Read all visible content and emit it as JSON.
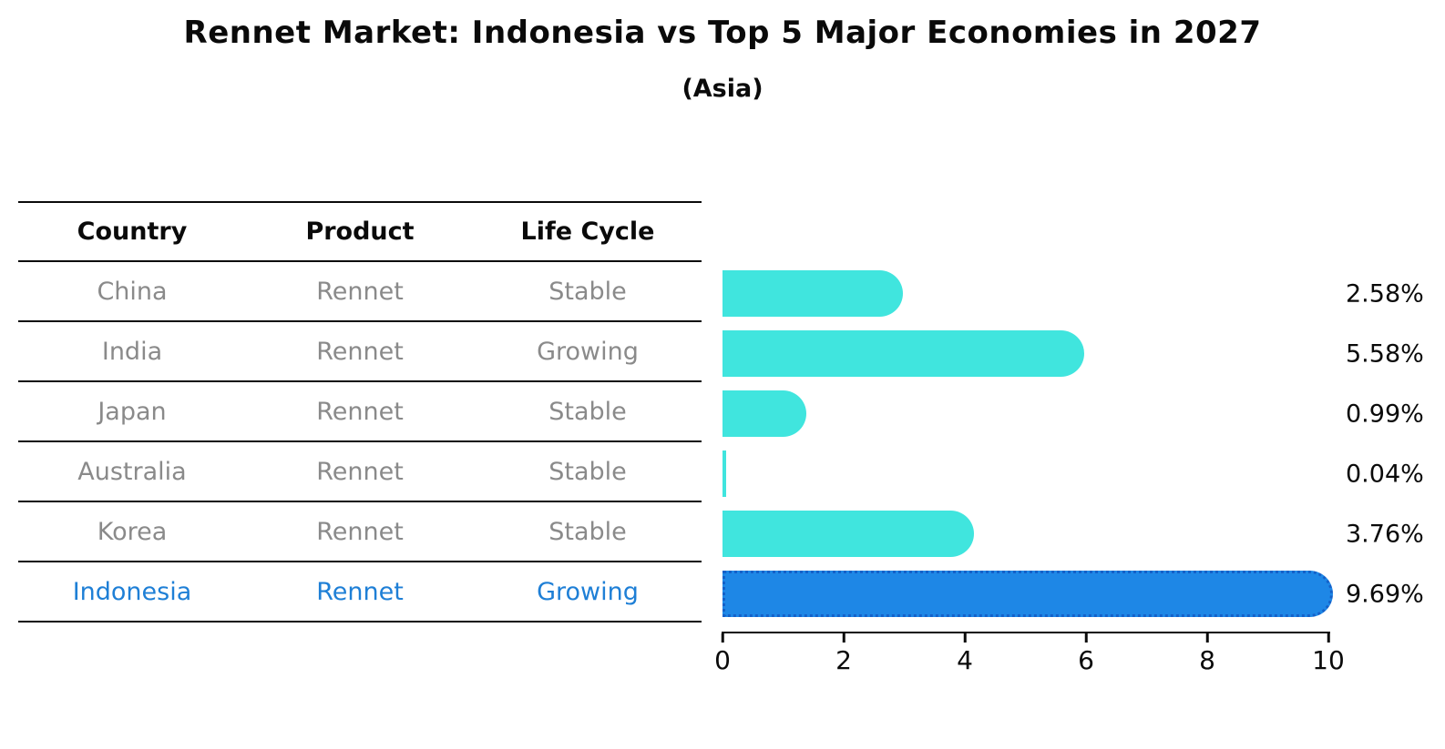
{
  "title": "Rennet Market: Indonesia vs Top 5 Major Economies in 2027",
  "subtitle": "(Asia)",
  "table": {
    "headers": [
      "Country",
      "Product",
      "Life Cycle"
    ],
    "rows": [
      {
        "country": "China",
        "product": "Rennet",
        "life_cycle": "Stable",
        "highlight": false
      },
      {
        "country": "India",
        "product": "Rennet",
        "life_cycle": "Growing",
        "highlight": false
      },
      {
        "country": "Japan",
        "product": "Rennet",
        "life_cycle": "Stable",
        "highlight": false
      },
      {
        "country": "Australia",
        "product": "Rennet",
        "life_cycle": "Stable",
        "highlight": false
      },
      {
        "country": "Korea",
        "product": "Rennet",
        "life_cycle": "Stable",
        "highlight": false
      },
      {
        "country": "Indonesia",
        "product": "Rennet",
        "life_cycle": "Growing",
        "highlight": true
      }
    ]
  },
  "chart_data": {
    "type": "bar",
    "orientation": "horizontal",
    "title": "Rennet Market: Indonesia vs Top 5 Major Economies in 2027",
    "subtitle": "(Asia)",
    "categories": [
      "China",
      "India",
      "Japan",
      "Australia",
      "Korea",
      "Indonesia"
    ],
    "values": [
      2.58,
      5.58,
      0.99,
      0.04,
      3.76,
      9.69
    ],
    "labels": [
      "2.58%",
      "5.58%",
      "0.99%",
      "0.04%",
      "3.76%",
      "9.69%"
    ],
    "highlight_index": 5,
    "xlim": [
      0,
      10
    ],
    "xticks": [
      0,
      2,
      4,
      6,
      8,
      10
    ],
    "grid": false,
    "legend": "none",
    "bar_color": "#40e5de",
    "highlight_color": "#1e87e6",
    "highlight_border_color": "#1461c9",
    "text_gray": "#8a8a8a",
    "highlight_text_color": "#1e7fd6"
  }
}
